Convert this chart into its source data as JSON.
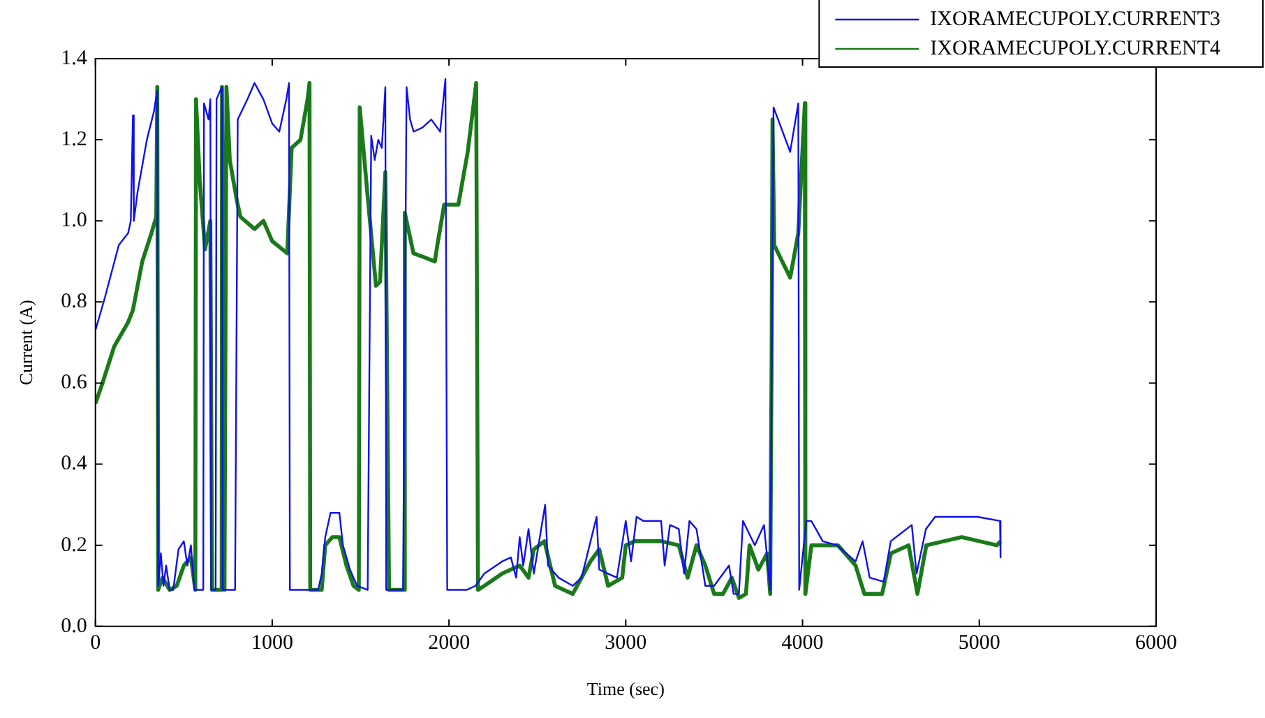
{
  "chart_data": {
    "type": "line",
    "xlabel": "Time (sec)",
    "ylabel": "Current (A)",
    "xlim": [
      0,
      6000
    ],
    "ylim": [
      0,
      1.4
    ],
    "xticks": [
      0,
      1000,
      2000,
      3000,
      4000,
      5000,
      6000
    ],
    "yticks": [
      {
        "value": 0,
        "label": "0.0"
      },
      0.2,
      0.4,
      0.6,
      0.8,
      {
        "value": 1,
        "label": "1.0"
      },
      1.2,
      1.4
    ],
    "grid": false,
    "legend": "top right",
    "marker": "none",
    "line_style": "solid",
    "series": [
      {
        "name": "IXORAMECUPOLY.CURRENT3",
        "color": "#1010ee",
        "x": [
          0,
          53,
          132,
          185,
          200,
          212,
          217,
          238,
          291,
          331,
          349,
          355,
          370,
          385,
          400,
          420,
          440,
          470,
          500,
          520,
          540,
          560,
          610,
          614,
          640,
          650,
          655,
          680,
          685,
          715,
          720,
          790,
          805,
          860,
          900,
          950,
          1000,
          1040,
          1080,
          1095,
          1100,
          1260,
          1280,
          1300,
          1330,
          1380,
          1400,
          1440,
          1480,
          1540,
          1560,
          1580,
          1600,
          1620,
          1640,
          1645,
          1740,
          1760,
          1780,
          1800,
          1850,
          1900,
          1950,
          1980,
          1990,
          2100,
          2150,
          2200,
          2300,
          2350,
          2380,
          2400,
          2420,
          2450,
          2480,
          2544,
          2560,
          2620,
          2700,
          2750,
          2835,
          2850,
          2900,
          2950,
          3000,
          3030,
          3061,
          3100,
          3200,
          3220,
          3250,
          3300,
          3330,
          3360,
          3400,
          3450,
          3500,
          3584,
          3610,
          3640,
          3663,
          3730,
          3782,
          3817,
          3836,
          3930,
          3976,
          3981,
          4021,
          4050,
          4114,
          4194,
          4300,
          4340,
          4380,
          4459,
          4499,
          4618,
          4645,
          4698,
          4750,
          4857,
          4990,
          5117,
          5120
        ],
        "values": [
          0.73,
          0.81,
          0.94,
          0.97,
          1.0,
          1.26,
          1.0,
          1.07,
          1.2,
          1.27,
          1.32,
          0.1,
          0.18,
          0.1,
          0.15,
          0.09,
          0.09,
          0.19,
          0.21,
          0.15,
          0.2,
          0.09,
          0.09,
          1.29,
          1.25,
          1.3,
          0.09,
          0.09,
          1.3,
          1.33,
          0.09,
          0.09,
          1.25,
          1.3,
          1.34,
          1.3,
          1.24,
          1.22,
          1.3,
          1.34,
          0.09,
          0.09,
          0.13,
          0.22,
          0.28,
          0.28,
          0.2,
          0.14,
          0.1,
          0.09,
          1.21,
          1.15,
          1.2,
          1.18,
          1.33,
          0.09,
          0.09,
          1.33,
          1.25,
          1.22,
          1.23,
          1.25,
          1.22,
          1.35,
          0.09,
          0.09,
          0.1,
          0.13,
          0.16,
          0.17,
          0.12,
          0.22,
          0.15,
          0.24,
          0.13,
          0.3,
          0.15,
          0.12,
          0.1,
          0.12,
          0.27,
          0.14,
          0.13,
          0.12,
          0.26,
          0.16,
          0.27,
          0.26,
          0.26,
          0.15,
          0.25,
          0.24,
          0.13,
          0.26,
          0.24,
          0.1,
          0.1,
          0.15,
          0.08,
          0.08,
          0.26,
          0.2,
          0.25,
          0.09,
          1.28,
          1.17,
          1.29,
          0.09,
          0.26,
          0.26,
          0.21,
          0.2,
          0.16,
          0.21,
          0.12,
          0.11,
          0.21,
          0.25,
          0.13,
          0.24,
          0.27,
          0.27,
          0.27,
          0.26,
          0.17
        ]
      },
      {
        "name": "IXORAMECUPOLY.CURRENT4",
        "color": "#1a7a1a",
        "x": [
          0,
          40,
          106,
          185,
          212,
          265,
          317,
          344,
          350,
          355,
          380,
          420,
          460,
          500,
          540,
          565,
          569,
          590,
          620,
          650,
          660,
          714,
          716,
          730,
          741,
          760,
          800,
          820,
          900,
          950,
          1000,
          1085,
          1110,
          1160,
          1200,
          1211,
          1215,
          1280,
          1300,
          1340,
          1380,
          1420,
          1460,
          1490,
          1495,
          1540,
          1587,
          1610,
          1640,
          1661,
          1665,
          1745,
          1750,
          1799,
          1860,
          1920,
          1934,
          1973,
          2053,
          2106,
          2154,
          2164,
          2200,
          2300,
          2400,
          2450,
          2480,
          2540,
          2600,
          2700,
          2800,
          2850,
          2900,
          2980,
          3000,
          3050,
          3100,
          3200,
          3300,
          3350,
          3400,
          3450,
          3500,
          3550,
          3600,
          3640,
          3680,
          3700,
          3750,
          3800,
          3817,
          3825,
          3830,
          3840,
          3930,
          3976,
          4013,
          4016,
          4050,
          4100,
          4200,
          4300,
          4350,
          4450,
          4500,
          4600,
          4650,
          4700,
          4800,
          4900,
          5000,
          5100,
          5120
        ],
        "values": [
          0.55,
          0.6,
          0.69,
          0.75,
          0.78,
          0.9,
          0.97,
          1.01,
          1.33,
          0.09,
          0.12,
          0.09,
          0.1,
          0.15,
          0.17,
          0.09,
          1.3,
          1.1,
          0.93,
          1.0,
          0.09,
          0.09,
          1.33,
          0.09,
          1.33,
          1.15,
          1.05,
          1.01,
          0.98,
          1.0,
          0.95,
          0.92,
          1.18,
          1.2,
          1.3,
          1.34,
          0.09,
          0.09,
          0.2,
          0.22,
          0.22,
          0.15,
          0.1,
          0.09,
          1.28,
          1.06,
          0.84,
          0.85,
          1.12,
          0.09,
          0.09,
          0.09,
          1.02,
          0.92,
          0.91,
          0.9,
          0.94,
          1.04,
          1.04,
          1.17,
          1.34,
          0.09,
          0.1,
          0.13,
          0.15,
          0.12,
          0.19,
          0.21,
          0.1,
          0.08,
          0.16,
          0.19,
          0.1,
          0.12,
          0.2,
          0.21,
          0.21,
          0.21,
          0.2,
          0.12,
          0.2,
          0.15,
          0.08,
          0.08,
          0.12,
          0.07,
          0.08,
          0.2,
          0.14,
          0.18,
          0.08,
          0.66,
          1.25,
          0.94,
          0.86,
          0.97,
          1.29,
          0.08,
          0.2,
          0.2,
          0.2,
          0.15,
          0.08,
          0.08,
          0.18,
          0.2,
          0.08,
          0.2,
          0.21,
          0.22,
          0.21,
          0.2,
          0.21
        ]
      }
    ]
  }
}
